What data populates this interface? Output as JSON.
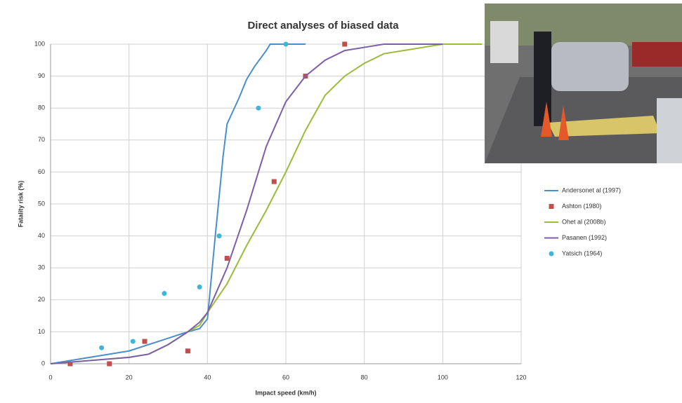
{
  "chart_data": {
    "type": "line",
    "title": "Direct analyses of biased data",
    "x_label": "Impact speed (km/h)",
    "y_label": "Fatality risk (%)",
    "xlim": [
      0,
      120
    ],
    "xticks": [
      0,
      20,
      40,
      60,
      80,
      100,
      120
    ],
    "ylim": [
      0,
      100
    ],
    "yticks": [
      0,
      10,
      20,
      30,
      40,
      50,
      60,
      70,
      80,
      90,
      100
    ],
    "grid": true,
    "legend": "right",
    "series": [
      {
        "name": "Andersonet al (1997)",
        "color": "#4a8fc9",
        "mark": "line",
        "x": [
          0,
          10,
          20,
          30,
          35,
          38,
          40,
          42,
          44,
          45,
          48,
          50,
          52,
          55,
          56,
          65
        ],
        "values": [
          0,
          2,
          4,
          8,
          10,
          11,
          14,
          40,
          65,
          75,
          83,
          89,
          93,
          98,
          100,
          100
        ]
      },
      {
        "name": "Ashton (1980)",
        "color": "#c0504d",
        "mark": "square",
        "x": [
          5,
          15,
          24,
          35,
          45,
          57,
          65,
          75
        ],
        "values": [
          0,
          0,
          7,
          4,
          33,
          57,
          90,
          100
        ]
      },
      {
        "name": "Ohet al (2008b)",
        "color": "#9bbb3b",
        "mark": "line",
        "x": [
          0,
          10,
          20,
          25,
          30,
          35,
          38,
          40,
          45,
          50,
          55,
          60,
          65,
          70,
          75,
          80,
          85,
          90,
          95,
          100,
          105,
          110
        ],
        "values": [
          0,
          1,
          2,
          3,
          6,
          10,
          12,
          16,
          25,
          37,
          48,
          60,
          73,
          84,
          90,
          94,
          97,
          98,
          99,
          100,
          100,
          100
        ]
      },
      {
        "name": "Pasanen (1992)",
        "color": "#7b5fa8",
        "mark": "line",
        "x": [
          0,
          10,
          20,
          25,
          30,
          35,
          38,
          40,
          45,
          50,
          55,
          60,
          65,
          70,
          75,
          80,
          85,
          100
        ],
        "values": [
          0,
          1,
          2,
          3,
          6,
          10,
          13,
          16,
          30,
          48,
          68,
          82,
          90,
          95,
          98,
          99,
          100,
          100
        ]
      },
      {
        "name": "Yatsich (1964)",
        "color": "#3fb5d8",
        "mark": "circle",
        "x": [
          13,
          21,
          29,
          38,
          43,
          53,
          60
        ],
        "values": [
          5,
          7,
          22,
          24,
          40,
          80,
          100
        ]
      }
    ]
  }
}
